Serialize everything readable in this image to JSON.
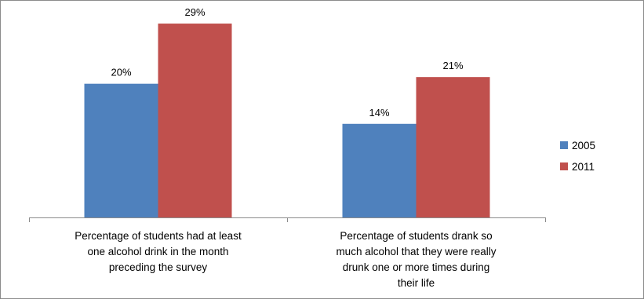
{
  "chart_data": {
    "type": "bar",
    "categories": [
      "Percentage of students had at least one alcohol drink in the month preceding the survey",
      "Percentage of students drank so much alcohol that they were really drunk one or more times during their life"
    ],
    "category_lines": [
      [
        "Percentage of students had at least",
        "one  alcohol drink in the month",
        "preceding the survey"
      ],
      [
        "Percentage of students drank so",
        "much alcohol that they were really",
        "drunk one or more times during",
        "their life"
      ]
    ],
    "series": [
      {
        "name": "2005",
        "values": [
          20,
          14
        ],
        "labels": [
          "20%",
          "14%"
        ],
        "color": "#4f81bd"
      },
      {
        "name": "2011",
        "values": [
          29,
          21
        ],
        "labels": [
          "29%",
          "21%"
        ],
        "color": "#c0504d"
      }
    ],
    "ylim": [
      0,
      31
    ],
    "legend_position": "right",
    "grid": false,
    "title": "",
    "xlabel": "",
    "ylabel": ""
  }
}
